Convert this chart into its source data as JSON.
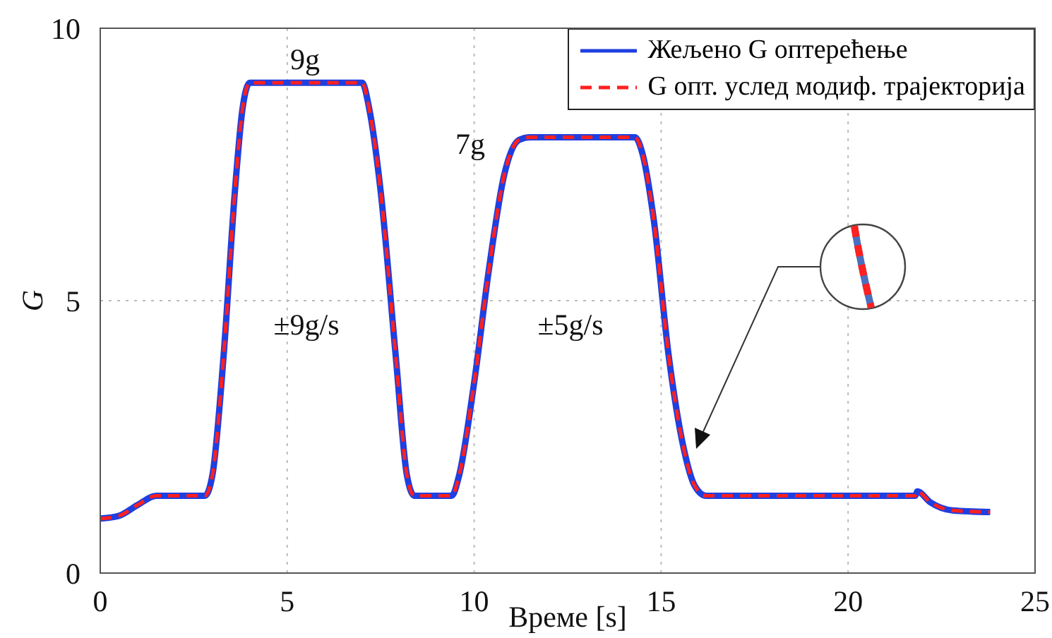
{
  "chart_data": {
    "type": "line",
    "xlabel": "Време [s]",
    "ylabel": "G",
    "x": [
      0,
      0.5,
      1,
      1.5,
      2.8,
      3.0,
      3.3,
      3.6,
      3.8,
      4.0,
      7.0,
      7.2,
      7.5,
      7.9,
      8.2,
      8.4,
      9.4,
      9.6,
      10.0,
      10.4,
      10.8,
      11.2,
      11.5,
      14.3,
      14.5,
      14.8,
      15.2,
      15.6,
      15.9,
      16.2,
      21.8,
      21.85,
      22.2,
      22.8,
      23.8
    ],
    "series": [
      {
        "name": "Жељено G оптерећење",
        "color": "#1f3fe0",
        "line_style": "solid",
        "values": [
          1.0,
          1.05,
          1.25,
          1.42,
          1.42,
          1.8,
          4,
          7,
          8.5,
          9,
          9,
          8.5,
          7,
          4,
          1.8,
          1.42,
          1.42,
          1.8,
          3.5,
          5.6,
          7.3,
          7.95,
          8,
          8,
          7.7,
          6.5,
          4,
          2.3,
          1.6,
          1.42,
          1.42,
          1.5,
          1.3,
          1.15,
          1.12
        ]
      },
      {
        "name": "G опт. услед модиф. трајекторија",
        "color": "#ff2020",
        "line_style": "dashed",
        "values": [
          1.0,
          1.05,
          1.25,
          1.42,
          1.42,
          1.8,
          4,
          7,
          8.5,
          9,
          9,
          8.5,
          7,
          4,
          1.8,
          1.42,
          1.42,
          1.8,
          3.5,
          5.6,
          7.3,
          7.95,
          8,
          8,
          7.7,
          6.5,
          4,
          2.3,
          1.6,
          1.42,
          1.42,
          1.5,
          1.3,
          1.15,
          1.12
        ]
      }
    ],
    "xlim": [
      0,
      25
    ],
    "xticks": [
      0,
      5,
      10,
      15,
      20,
      25
    ],
    "ylim": [
      0,
      10
    ],
    "yticks": [
      0,
      5,
      10
    ],
    "grid": true,
    "legend": "top right",
    "marker": "none",
    "annotations": [
      "9g",
      "7g",
      "±9g/s",
      "±5g/s"
    ]
  }
}
